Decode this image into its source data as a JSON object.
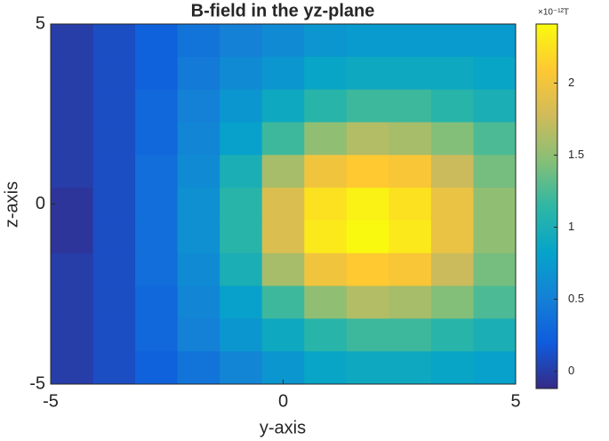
{
  "chart_data": {
    "type": "heatmap",
    "title": "B-field in the yz-plane",
    "xlabel": "y-axis",
    "ylabel": "z-axis",
    "xlim": [
      -5,
      5
    ],
    "ylim": [
      -5,
      5
    ],
    "xticks": [
      -5,
      0,
      5
    ],
    "yticks": [
      -5,
      0,
      5
    ],
    "z": [
      [
        0.0,
        0.1,
        0.25,
        0.4,
        0.5,
        0.6,
        0.7,
        0.75,
        0.75,
        0.75,
        0.75
      ],
      [
        0.0,
        0.1,
        0.25,
        0.45,
        0.6,
        0.7,
        0.85,
        0.9,
        0.9,
        0.9,
        0.85
      ],
      [
        0.0,
        0.1,
        0.3,
        0.5,
        0.7,
        0.9,
        1.1,
        1.2,
        1.2,
        1.1,
        1.0
      ],
      [
        0.0,
        0.1,
        0.3,
        0.55,
        0.8,
        1.2,
        1.5,
        1.65,
        1.6,
        1.45,
        1.25
      ],
      [
        0.0,
        0.1,
        0.35,
        0.6,
        1.0,
        1.6,
        2.0,
        2.1,
        2.05,
        1.75,
        1.4
      ],
      [
        -0.05,
        0.1,
        0.35,
        0.65,
        1.1,
        1.85,
        2.25,
        2.35,
        2.25,
        1.95,
        1.5
      ],
      [
        -0.05,
        0.1,
        0.35,
        0.65,
        1.1,
        1.85,
        2.3,
        2.4,
        2.3,
        1.95,
        1.5
      ],
      [
        0.0,
        0.1,
        0.35,
        0.6,
        1.0,
        1.6,
        2.0,
        2.1,
        2.05,
        1.75,
        1.4
      ],
      [
        0.0,
        0.1,
        0.3,
        0.55,
        0.8,
        1.2,
        1.5,
        1.65,
        1.6,
        1.45,
        1.25
      ],
      [
        0.0,
        0.1,
        0.3,
        0.5,
        0.7,
        0.9,
        1.1,
        1.2,
        1.2,
        1.1,
        1.0
      ],
      [
        0.0,
        0.1,
        0.25,
        0.4,
        0.55,
        0.7,
        0.85,
        0.9,
        0.9,
        0.85,
        0.8
      ]
    ],
    "clim": [
      -0.12,
      2.41
    ],
    "cticks": [
      0,
      0.5,
      1,
      1.5,
      2
    ],
    "colorbar_label": "×10⁻¹²T",
    "colormap": [
      "#352a87",
      "#0f5cdd",
      "#1481d6",
      "#06a4ca",
      "#2eb7a4",
      "#87bf77",
      "#d1bb59",
      "#fec832",
      "#f9fb0e"
    ]
  }
}
